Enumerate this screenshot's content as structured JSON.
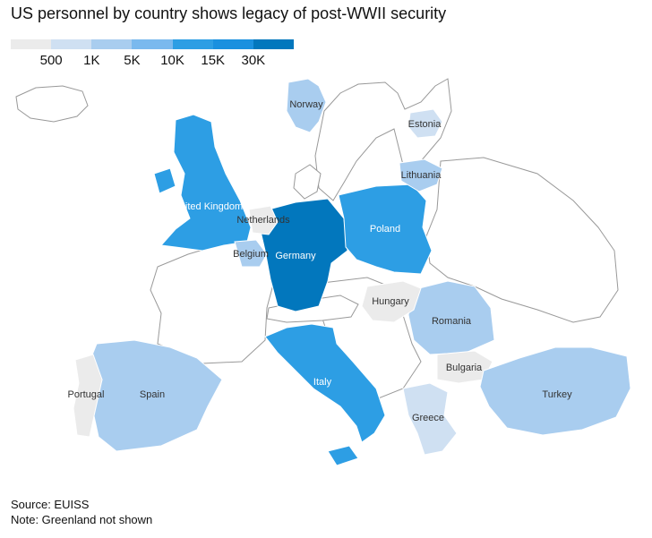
{
  "title": "US personnel by country shows legacy of post-WWII security",
  "legend": {
    "colors": [
      "#ebebeb",
      "#cfe0f2",
      "#a9cdef",
      "#7ab9ee",
      "#2d9ee4",
      "#1a90df",
      "#0277bd"
    ],
    "labels": [
      "500",
      "1K",
      "5K",
      "10K",
      "15K",
      "30K"
    ]
  },
  "countries": [
    {
      "name": "Germany",
      "fill": "#0277bd"
    },
    {
      "name": "Italy",
      "fill": "#2d9ee4"
    },
    {
      "name": "United Kingdom",
      "fill": "#2d9ee4"
    },
    {
      "name": "Poland",
      "fill": "#2d9ee4"
    },
    {
      "name": "Spain",
      "fill": "#a9cdef"
    },
    {
      "name": "Romania",
      "fill": "#a9cdef"
    },
    {
      "name": "Turkey",
      "fill": "#a9cdef"
    },
    {
      "name": "Norway",
      "fill": "#a9cdef"
    },
    {
      "name": "Lithuania",
      "fill": "#a9cdef"
    },
    {
      "name": "Belgium",
      "fill": "#a9cdef"
    },
    {
      "name": "Greece",
      "fill": "#cfe0f2"
    },
    {
      "name": "Estonia",
      "fill": "#cfe0f2"
    },
    {
      "name": "Bulgaria",
      "fill": "#ebebeb"
    },
    {
      "name": "Hungary",
      "fill": "#ebebeb"
    },
    {
      "name": "Portugal",
      "fill": "#ebebeb"
    },
    {
      "name": "Netherlands",
      "fill": "#ebebeb"
    }
  ],
  "footer": {
    "source": "Source: EUISS",
    "note": "Note: Greenland not shown"
  }
}
